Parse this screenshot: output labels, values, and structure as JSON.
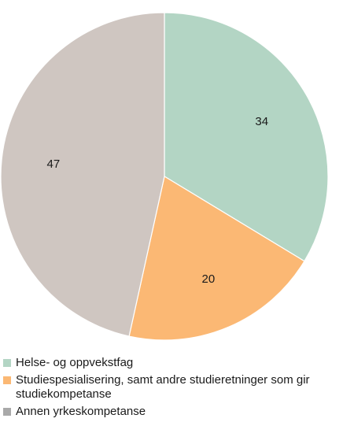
{
  "chart_data": {
    "type": "pie",
    "categories": [
      "Helse- og oppvekstfag",
      "Studiespesialisering, samt andre studieretninger som gir studiekompetanse",
      "Annen yrkeskompetanse"
    ],
    "values": [
      34,
      20,
      47
    ],
    "data_labels": [
      "34",
      "20",
      "47"
    ],
    "colors": [
      "#b3d5c4",
      "#fbb874",
      "#cfc6c1"
    ],
    "legend_colors": [
      "#b3d5c4",
      "#fbb874",
      "#a9a9a9"
    ],
    "start": "12 o'clock",
    "direction": "clockwise",
    "legend_position": "bottom"
  }
}
